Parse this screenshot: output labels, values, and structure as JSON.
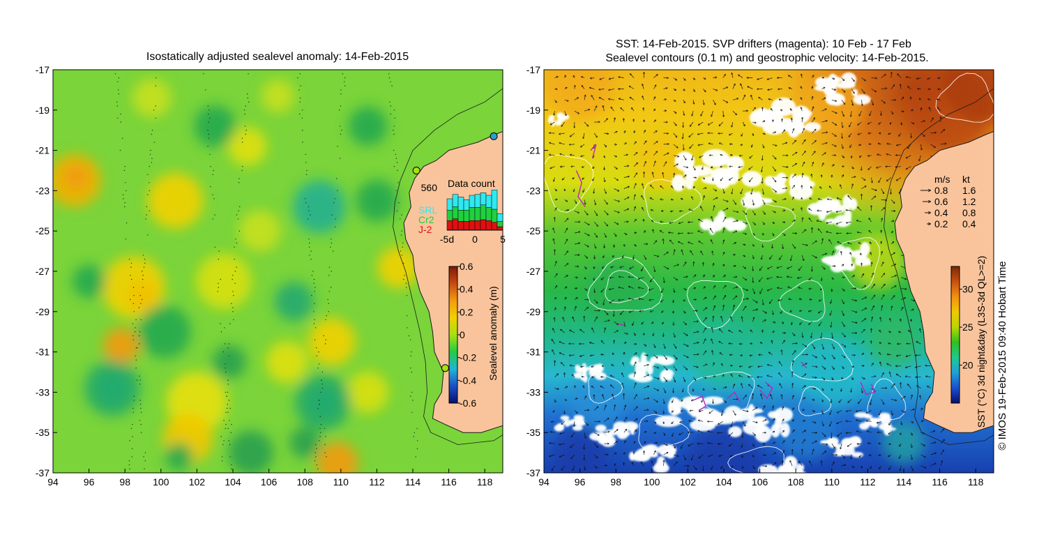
{
  "left_panel": {
    "title": "Isostatically adjusted sealevel anomaly: 14-Feb-2015",
    "colorbar": {
      "label": "Sealevel anomaly (m)",
      "ticks": [
        "0.6",
        "0.4",
        "0.2",
        "0",
        "-0.2",
        "-0.4",
        "-0.6"
      ],
      "colors": [
        "#08106b",
        "#1a4fc8",
        "#22b4d4",
        "#22cc44",
        "#a8e010",
        "#f2d000",
        "#f29a10",
        "#c84a10",
        "#7a1a08"
      ]
    },
    "data_count": {
      "title": "Data count",
      "max_label": "560",
      "series_labels": [
        {
          "label": "SRL",
          "color": "#30e8f0"
        },
        {
          "label": "Cr2",
          "color": "#20d040"
        },
        {
          "label": "J-2",
          "color": "#e01010"
        }
      ],
      "x_ticks": [
        "-5d",
        "0",
        "5"
      ],
      "days": [
        -5,
        -4,
        -3,
        -2,
        -1,
        0,
        1,
        2,
        3,
        4
      ],
      "srl": [
        130,
        140,
        150,
        120,
        140,
        150,
        140,
        140,
        220,
        90
      ],
      "cr2": [
        120,
        140,
        130,
        130,
        150,
        150,
        170,
        150,
        150,
        60
      ],
      "j2": [
        110,
        130,
        100,
        100,
        110,
        110,
        120,
        110,
        90,
        40
      ],
      "ymax": 560
    }
  },
  "right_panel": {
    "title_line1": "SST: 14-Feb-2015. SVP drifters (magenta): 10 Feb - 17 Feb",
    "title_line2": "Sealevel contours (0.1 m) and geostrophic velocity: 14-Feb-2015.",
    "speed_legend": {
      "header_ms": "m/s",
      "header_kt": "kt",
      "rows": [
        {
          "ms": "0.8",
          "kt": "1.6"
        },
        {
          "ms": "0.6",
          "kt": "1.2"
        },
        {
          "ms": "0.4",
          "kt": "0.8"
        },
        {
          "ms": "0.2",
          "kt": "0.4"
        }
      ]
    },
    "colorbar": {
      "label": "SST (°C) 3d night&day (L3S-3d QL>=2)",
      "ticks": [
        "30",
        "25",
        "20"
      ],
      "colors": [
        "#08106b",
        "#1a50d0",
        "#20a0d8",
        "#20c890",
        "#30c020",
        "#b8d800",
        "#f2c800",
        "#f29010",
        "#c85010",
        "#7a2808"
      ]
    }
  },
  "axes": {
    "lon_ticks": [
      "94",
      "96",
      "98",
      "100",
      "102",
      "104",
      "106",
      "108",
      "110",
      "112",
      "114",
      "116",
      "118"
    ],
    "lat_ticks": [
      "-17",
      "-19",
      "-21",
      "-23",
      "-25",
      "-27",
      "-29",
      "-31",
      "-33",
      "-35",
      "-37"
    ],
    "lon_range": [
      94,
      119
    ],
    "lat_range": [
      -37,
      -17
    ]
  },
  "credit": "© IMOS 19-Feb-2015 09:40 Hobart Time",
  "colors": {
    "land": "#f9c49c",
    "coast_line": "#1a1a1a",
    "contour_white": "#ffffff",
    "drifter": "#c020c0"
  }
}
